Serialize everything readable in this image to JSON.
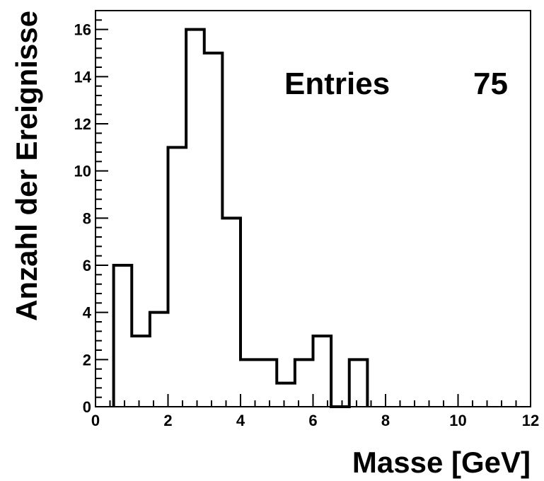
{
  "chart_data": {
    "type": "bar",
    "style": "step-histogram",
    "xlabel": "Masse [GeV]",
    "ylabel": "Anzahl der Ereignisse",
    "xlim": [
      0,
      12
    ],
    "ylim": [
      0,
      16.8
    ],
    "bin_width": 0.5,
    "bin_edges": [
      0.5,
      1.0,
      1.5,
      2.0,
      2.5,
      3.0,
      3.5,
      4.0,
      4.5,
      5.0,
      5.5,
      6.0,
      6.5,
      7.0,
      7.5
    ],
    "values": [
      6,
      3,
      4,
      11,
      16,
      15,
      8,
      2,
      2,
      1,
      2,
      3,
      0,
      2
    ],
    "x_ticks": [
      0,
      2,
      4,
      6,
      8,
      10,
      12
    ],
    "y_ticks": [
      0,
      2,
      4,
      6,
      8,
      10,
      12,
      14,
      16
    ],
    "x_minor_step": 0.4,
    "y_minor_step": 0.4,
    "grid": false,
    "line_color": "#000000",
    "stats": {
      "label": "Entries",
      "value": "75"
    }
  }
}
